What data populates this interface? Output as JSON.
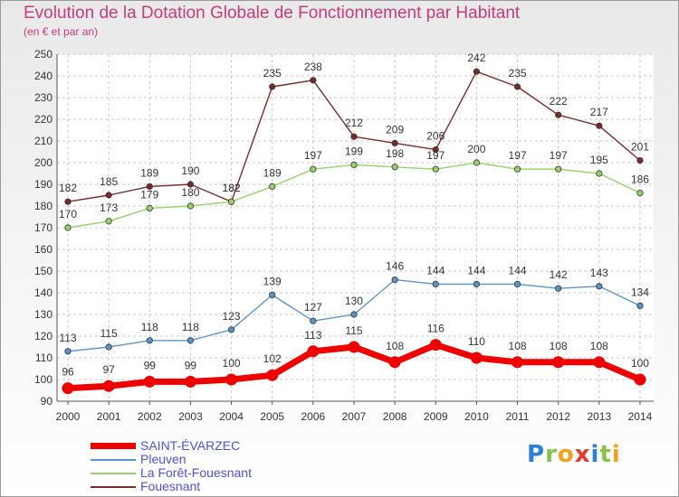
{
  "title": "Evolution de la Dotation Globale de Fonctionnement par Habitant",
  "subtitle": "(en € et par an)",
  "logo": {
    "text": "Proxiti",
    "letters": [
      {
        "ch": "P",
        "color": "#2a7fd6"
      },
      {
        "ch": "r",
        "color": "#8bc34a"
      },
      {
        "ch": "o",
        "color": "#f3a21b"
      },
      {
        "ch": "x",
        "color": "#e23d2b"
      },
      {
        "ch": "i",
        "color": "#2a7fd6"
      },
      {
        "ch": "t",
        "color": "#8bc34a"
      },
      {
        "ch": "i",
        "color": "#f3a21b"
      }
    ]
  },
  "chart_data": {
    "type": "line",
    "title": "Evolution de la Dotation Globale de Fonctionnement par Habitant",
    "subtitle": "(en € et par an)",
    "xlabel": "",
    "ylabel": "",
    "x": [
      "2000",
      "2001",
      "2002",
      "2003",
      "2004",
      "2005",
      "2006",
      "2007",
      "2008",
      "2009",
      "2010",
      "2011",
      "2012",
      "2013",
      "2014"
    ],
    "ylim": [
      90,
      250
    ],
    "yticks": [
      90,
      100,
      110,
      120,
      130,
      140,
      150,
      160,
      170,
      180,
      190,
      200,
      210,
      220,
      230,
      240,
      250
    ],
    "grid": true,
    "legend_position": "bottom-left",
    "series": [
      {
        "name": "SAINT-ÉVARZEC",
        "color": "#ee0000",
        "values": [
          96,
          97,
          99,
          99,
          100,
          102,
          113,
          115,
          108,
          116,
          110,
          108,
          108,
          108,
          100
        ]
      },
      {
        "name": "Pleuven",
        "color": "#5a93c8",
        "values": [
          113,
          115,
          118,
          118,
          123,
          139,
          127,
          130,
          146,
          144,
          144,
          144,
          142,
          143,
          134
        ]
      },
      {
        "name": "La Forêt-Fouesnant",
        "color": "#93d36b",
        "values": [
          170,
          173,
          179,
          180,
          182,
          189,
          197,
          199,
          198,
          197,
          200,
          197,
          197,
          195,
          186
        ]
      },
      {
        "name": "Fouesnant",
        "color": "#7a2a2a",
        "values": [
          182,
          185,
          189,
          190,
          182,
          235,
          238,
          212,
          209,
          206,
          242,
          235,
          222,
          217,
          201
        ]
      }
    ]
  }
}
